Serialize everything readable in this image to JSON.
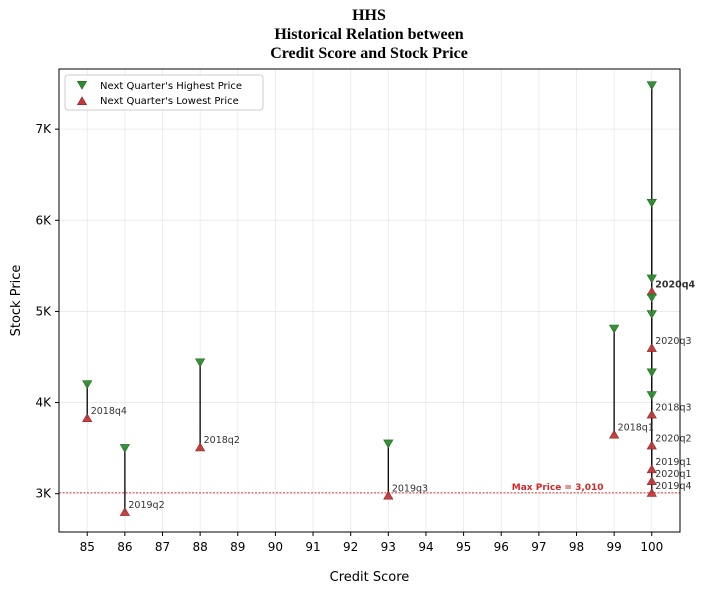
{
  "chart_data": {
    "type": "scatter",
    "title_lines": [
      "HHS",
      "Historical Relation between",
      "Credit Score and Stock Price"
    ],
    "xlabel": "Credit Score",
    "ylabel": "Stock Price",
    "xlim": [
      84.25,
      100.75
    ],
    "ylim": [
      2580,
      7660
    ],
    "x_ticks": [
      85,
      86,
      87,
      88,
      89,
      90,
      91,
      92,
      93,
      94,
      95,
      96,
      97,
      98,
      99,
      100
    ],
    "y_ticks": [
      {
        "value": 3000,
        "label": "3K"
      },
      {
        "value": 4000,
        "label": "4K"
      },
      {
        "value": 5000,
        "label": "5K"
      },
      {
        "value": 6000,
        "label": "6K"
      },
      {
        "value": 7000,
        "label": "7K"
      }
    ],
    "grid": true,
    "legend_position": "top-left",
    "series": [
      {
        "name": "Next Quarter's Highest Price",
        "marker": "triangle-down",
        "color": "#2e8b2e"
      },
      {
        "name": "Next Quarter's Lowest Price",
        "marker": "triangle-up",
        "color": "#c0393b"
      }
    ],
    "points": [
      {
        "label": "2018q4",
        "x": 85,
        "high": 4200,
        "low": 3830,
        "highlight": false
      },
      {
        "label": "2019q2",
        "x": 86,
        "high": 3500,
        "low": 2800,
        "highlight": false
      },
      {
        "label": "2018q2",
        "x": 88,
        "high": 4440,
        "low": 3510,
        "highlight": false
      },
      {
        "label": "2019q3",
        "x": 93,
        "high": 3550,
        "low": 2980,
        "highlight": false
      },
      {
        "label": "2018q1",
        "x": 99,
        "high": 4810,
        "low": 3650,
        "highlight": false
      },
      {
        "label": "2020q4",
        "x": 100,
        "high": 7480,
        "low": 5220,
        "highlight": true
      },
      {
        "label": "2020q3",
        "x": 100,
        "high": 6190,
        "low": 4600,
        "highlight": false
      },
      {
        "label": "2018q3",
        "x": 100,
        "high": 5360,
        "low": 3870,
        "highlight": false
      },
      {
        "label": "2020q2",
        "x": 100,
        "high": 5150,
        "low": 3530,
        "highlight": false
      },
      {
        "label": "2019q1",
        "x": 100,
        "high": 4970,
        "low": 3270,
        "highlight": false
      },
      {
        "label": "2020q1",
        "x": 100,
        "high": 4330,
        "low": 3140,
        "highlight": false
      },
      {
        "label": "2019q4",
        "x": 100,
        "high": 4080,
        "low": 3010,
        "highlight": false
      }
    ],
    "reference_line": {
      "y": 3010,
      "label": "Max Price = 3,010",
      "color": "#d62728"
    }
  }
}
